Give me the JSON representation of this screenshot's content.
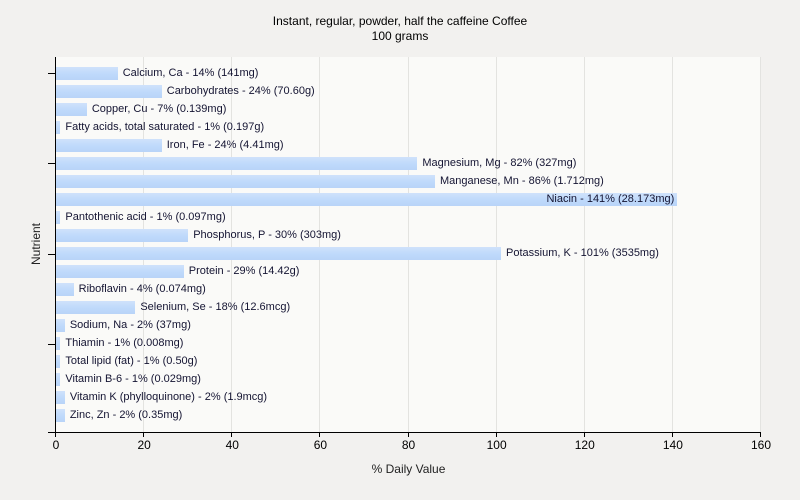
{
  "title": "Instant, regular, powder, half the caffeine Coffee",
  "subtitle": "100 grams",
  "chart_data": {
    "type": "bar",
    "orientation": "horizontal",
    "title": "Instant, regular, powder, half the caffeine Coffee",
    "subtitle": "100 grams",
    "xlabel": "% Daily Value",
    "ylabel": "Nutrient",
    "xlim": [
      0,
      160
    ],
    "x_ticks": [
      0,
      20,
      40,
      60,
      80,
      100,
      120,
      140,
      160
    ],
    "grid": true,
    "y_tick_rows": [
      0,
      5,
      10,
      15
    ],
    "bar_color": "#bed9fb",
    "bars": [
      {
        "label": "Calcium, Ca - 14% (141mg)",
        "nutrient": "Calcium, Ca",
        "percent": 14,
        "amount": "141mg"
      },
      {
        "label": "Carbohydrates - 24% (70.60g)",
        "nutrient": "Carbohydrates",
        "percent": 24,
        "amount": "70.60g"
      },
      {
        "label": "Copper, Cu - 7% (0.139mg)",
        "nutrient": "Copper, Cu",
        "percent": 7,
        "amount": "0.139mg"
      },
      {
        "label": "Fatty acids, total saturated - 1% (0.197g)",
        "nutrient": "Fatty acids, total saturated",
        "percent": 1,
        "amount": "0.197g"
      },
      {
        "label": "Iron, Fe - 24% (4.41mg)",
        "nutrient": "Iron, Fe",
        "percent": 24,
        "amount": "4.41mg"
      },
      {
        "label": "Magnesium, Mg - 82% (327mg)",
        "nutrient": "Magnesium, Mg",
        "percent": 82,
        "amount": "327mg"
      },
      {
        "label": "Manganese, Mn - 86% (1.712mg)",
        "nutrient": "Manganese, Mn",
        "percent": 86,
        "amount": "1.712mg"
      },
      {
        "label": "Niacin - 141% (28.173mg)",
        "nutrient": "Niacin",
        "percent": 141,
        "amount": "28.173mg"
      },
      {
        "label": "Pantothenic acid - 1% (0.097mg)",
        "nutrient": "Pantothenic acid",
        "percent": 1,
        "amount": "0.097mg"
      },
      {
        "label": "Phosphorus, P - 30% (303mg)",
        "nutrient": "Phosphorus, P",
        "percent": 30,
        "amount": "303mg"
      },
      {
        "label": "Potassium, K - 101% (3535mg)",
        "nutrient": "Potassium, K",
        "percent": 101,
        "amount": "3535mg"
      },
      {
        "label": "Protein - 29% (14.42g)",
        "nutrient": "Protein",
        "percent": 29,
        "amount": "14.42g"
      },
      {
        "label": "Riboflavin - 4% (0.074mg)",
        "nutrient": "Riboflavin",
        "percent": 4,
        "amount": "0.074mg"
      },
      {
        "label": "Selenium, Se - 18% (12.6mcg)",
        "nutrient": "Selenium, Se",
        "percent": 18,
        "amount": "12.6mcg"
      },
      {
        "label": "Sodium, Na - 2% (37mg)",
        "nutrient": "Sodium, Na",
        "percent": 2,
        "amount": "37mg"
      },
      {
        "label": "Thiamin - 1% (0.008mg)",
        "nutrient": "Thiamin",
        "percent": 1,
        "amount": "0.008mg"
      },
      {
        "label": "Total lipid (fat) - 1% (0.50g)",
        "nutrient": "Total lipid (fat)",
        "percent": 1,
        "amount": "0.50g"
      },
      {
        "label": "Vitamin B-6 - 1% (0.029mg)",
        "nutrient": "Vitamin B-6",
        "percent": 1,
        "amount": "0.029mg"
      },
      {
        "label": "Vitamin K (phylloquinone) - 2% (1.9mcg)",
        "nutrient": "Vitamin K (phylloquinone)",
        "percent": 2,
        "amount": "1.9mcg"
      },
      {
        "label": "Zinc, Zn - 2% (0.35mg)",
        "nutrient": "Zinc, Zn",
        "percent": 2,
        "amount": "0.35mg"
      }
    ]
  }
}
